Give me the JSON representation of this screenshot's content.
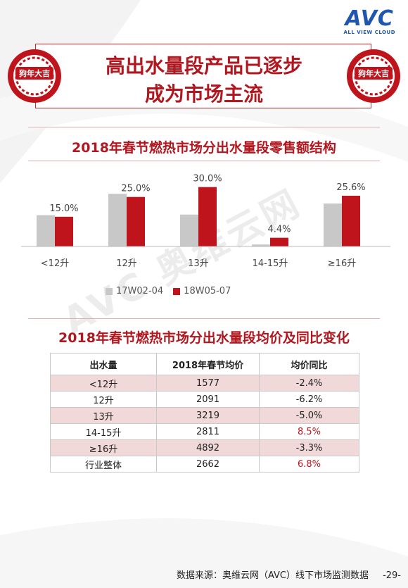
{
  "logo": {
    "text": "AVC",
    "sub": "ALL VIEW CLOUD"
  },
  "badge_text": "狗年大吉",
  "headline": {
    "line1": "高出水量段产品已逐步",
    "line2": "成为市场主流"
  },
  "chart_title": "2018年春节燃热市场分出水量段零售额结构",
  "chart_data": {
    "type": "bar",
    "categories": [
      "<12升",
      "12升",
      "13升",
      "14-15升",
      "≥16升"
    ],
    "series": [
      {
        "name": "17W02-04",
        "color": "#c8c8c8",
        "values": [
          15.8,
          26.6,
          16.1,
          1.0,
          21.7
        ]
      },
      {
        "name": "18W05-07",
        "color": "#c0141c",
        "values": [
          15.0,
          25.0,
          30.0,
          4.4,
          25.6
        ]
      }
    ],
    "data_labels": [
      "15.0%",
      "25.0%",
      "30.0%",
      "4.4%",
      "25.6%"
    ],
    "ylim": [
      0,
      32
    ]
  },
  "table_title": "2018年春节燃热市场分出水量段均价及同比变化",
  "table": {
    "headers": [
      "出水量",
      "2018年春节均价",
      "均价同比"
    ],
    "rows": [
      {
        "segment": "<12升",
        "price": "1577",
        "yoy": "-2.4%"
      },
      {
        "segment": "12升",
        "price": "2091",
        "yoy": "-6.2%"
      },
      {
        "segment": "13升",
        "price": "3219",
        "yoy": "-5.0%"
      },
      {
        "segment": "14-15升",
        "price": "2811",
        "yoy": "8.5%"
      },
      {
        "segment": "≥16升",
        "price": "4892",
        "yoy": "-3.3%"
      },
      {
        "segment": "行业整体",
        "price": "2662",
        "yoy": "6.8%"
      }
    ]
  },
  "watermark": "AVC 奥维云网",
  "footer": "数据来源：奥维云网（AVC）线下市场监测数据",
  "page_number": "-29-"
}
